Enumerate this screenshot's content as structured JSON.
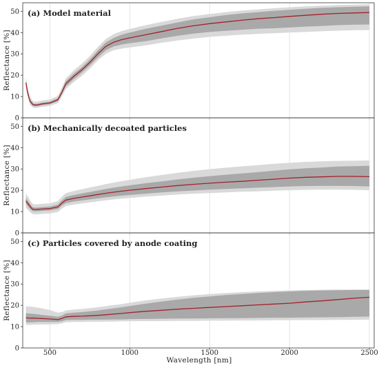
{
  "figure": {
    "xlabel": "Wavelength [nm]",
    "ylabel": "Reflectance [%]",
    "colors": {
      "mean_line": "#a3202a",
      "inner_band": "#a9a9a9",
      "outer_band": "#d9d9d9",
      "grid": "#dddddd",
      "axis": "#333333"
    }
  },
  "chart_data": [
    {
      "type": "area",
      "title": "(a) Model material",
      "xlabel": "",
      "ylabel": "Reflectance [%]",
      "xlim": [
        330,
        2530
      ],
      "ylim": [
        0,
        54
      ],
      "xticks": [
        500,
        1000,
        1500,
        2000,
        2500
      ],
      "yticks": [
        0,
        10,
        20,
        30,
        40,
        50
      ],
      "grid": "vertical",
      "x": [
        350,
        360,
        375,
        390,
        400,
        420,
        450,
        500,
        550,
        575,
        600,
        650,
        700,
        750,
        800,
        850,
        900,
        950,
        1000,
        1100,
        1200,
        1300,
        1400,
        1500,
        1600,
        1700,
        1800,
        1900,
        2000,
        2100,
        2200,
        2300,
        2400,
        2500
      ],
      "series": [
        {
          "role": "mean",
          "values": [
            16.5,
            12,
            8,
            6.5,
            6,
            6,
            6.5,
            7,
            8.5,
            12,
            16,
            19.5,
            22.5,
            26,
            30,
            33.5,
            35.5,
            36.7,
            37.5,
            39,
            40.5,
            42,
            43.2,
            44.2,
            45,
            45.8,
            46.5,
            47,
            47.6,
            48.1,
            48.6,
            49,
            49.2,
            49.4
          ]
        },
        {
          "role": "inner-lower",
          "values": [
            15.5,
            11,
            7.3,
            5.8,
            5.4,
            5.4,
            5.9,
            6.4,
            7.8,
            11,
            14.8,
            18.2,
            21.2,
            24.6,
            28.4,
            31.7,
            33.5,
            34.4,
            35,
            36,
            37.3,
            38.5,
            39.5,
            40.3,
            40.8,
            41.3,
            41.8,
            42,
            42.4,
            42.8,
            43.1,
            43.5,
            43.7,
            43.8
          ]
        },
        {
          "role": "inner-upper",
          "values": [
            17.5,
            13,
            8.7,
            7.2,
            6.6,
            6.6,
            7.1,
            7.6,
            9.2,
            13,
            17.2,
            20.8,
            23.8,
            27.4,
            31.6,
            35.3,
            37.5,
            39,
            40,
            41.8,
            43.3,
            44.8,
            46.2,
            47.2,
            48.2,
            49,
            49.6,
            50.2,
            50.7,
            51.2,
            51.6,
            51.9,
            52.1,
            52.3
          ]
        },
        {
          "role": "outer-lower",
          "values": [
            14,
            10,
            6.2,
            5,
            4.6,
            4.7,
            5.1,
            5.6,
            6.9,
            10,
            13.5,
            16.8,
            19.7,
            23.1,
            27,
            30,
            31.8,
            32.5,
            33,
            34,
            35.2,
            36.3,
            37.2,
            38,
            38.5,
            39,
            39.4,
            39.7,
            40,
            40.3,
            40.6,
            40.9,
            41.1,
            41.2
          ]
        },
        {
          "role": "outer-upper",
          "values": [
            19,
            14.5,
            10,
            8.3,
            7.6,
            7.6,
            8.1,
            8.6,
            10.3,
            14.2,
            18.5,
            22.3,
            25.4,
            29,
            33.2,
            37,
            39.3,
            40.7,
            41.7,
            43.5,
            45,
            46.5,
            47.8,
            48.7,
            49.6,
            50.3,
            50.9,
            51.4,
            51.9,
            52.3,
            52.6,
            52.9,
            53.1,
            53.3
          ]
        }
      ]
    },
    {
      "type": "area",
      "title": "(b) Mechanically decoated particles",
      "xlabel": "",
      "ylabel": "Reflectance [%]",
      "xlim": [
        330,
        2530
      ],
      "ylim": [
        0,
        54
      ],
      "xticks": [
        500,
        1000,
        1500,
        2000,
        2500
      ],
      "yticks": [
        0,
        10,
        20,
        30,
        40,
        50
      ],
      "grid": "vertical",
      "x": [
        350,
        360,
        375,
        390,
        400,
        420,
        450,
        500,
        550,
        575,
        600,
        650,
        700,
        750,
        800,
        850,
        900,
        950,
        1000,
        1100,
        1200,
        1300,
        1400,
        1500,
        1600,
        1700,
        1800,
        1900,
        2000,
        2100,
        2200,
        2300,
        2400,
        2500
      ],
      "series": [
        {
          "role": "mean",
          "values": [
            15,
            14,
            12.5,
            11.2,
            11,
            11,
            11.2,
            11.4,
            12.2,
            14,
            15.4,
            16.2,
            16.8,
            17.4,
            18,
            18.6,
            19.1,
            19.6,
            20,
            20.8,
            21.5,
            22.2,
            22.8,
            23.3,
            23.8,
            24.2,
            24.7,
            25.2,
            25.7,
            26.1,
            26.3,
            26.5,
            26.5,
            26.4
          ]
        },
        {
          "role": "inner-lower",
          "values": [
            13.5,
            12.7,
            11.3,
            10.3,
            10.1,
            10.1,
            10.3,
            10.5,
            11.2,
            12.8,
            14,
            14.7,
            15.2,
            15.7,
            16.2,
            16.7,
            17.1,
            17.5,
            17.8,
            18.4,
            19,
            19.5,
            19.9,
            20.3,
            20.6,
            20.9,
            21.2,
            21.5,
            21.8,
            22,
            22.1,
            22.1,
            22,
            21.8
          ]
        },
        {
          "role": "inner-upper",
          "values": [
            16.5,
            15.3,
            13.7,
            12.2,
            11.9,
            11.9,
            12.1,
            12.4,
            13.3,
            15.3,
            16.9,
            17.8,
            18.5,
            19.2,
            19.9,
            20.6,
            21.2,
            21.8,
            22.3,
            23.3,
            24.2,
            25.1,
            25.9,
            26.6,
            27.3,
            27.9,
            28.5,
            29.2,
            29.8,
            30.3,
            30.7,
            31.1,
            31.3,
            31.5
          ]
        },
        {
          "role": "outer-lower",
          "values": [
            11.8,
            11,
            9.8,
            8.9,
            8.7,
            8.7,
            8.9,
            9.1,
            9.8,
            11.4,
            12.6,
            13.3,
            13.8,
            14.3,
            14.8,
            15.3,
            15.7,
            16.1,
            16.4,
            17,
            17.5,
            18,
            18.4,
            18.7,
            19,
            19.3,
            19.5,
            19.8,
            20,
            20.2,
            20.3,
            20.3,
            20.2,
            20
          ]
        },
        {
          "role": "outer-upper",
          "values": [
            18.5,
            17.3,
            15.4,
            13.8,
            13.4,
            13.4,
            13.6,
            13.9,
            14.9,
            17,
            18.7,
            19.7,
            20.5,
            21.3,
            22.1,
            22.9,
            23.6,
            24.3,
            24.9,
            26.1,
            27.2,
            28.2,
            29.1,
            29.9,
            30.6,
            31.2,
            31.8,
            32.4,
            32.9,
            33.3,
            33.6,
            33.8,
            33.9,
            34
          ]
        }
      ]
    },
    {
      "type": "area",
      "title": "(c) Particles covered by anode coating",
      "xlabel": "Wavelength [nm]",
      "ylabel": "Reflectance [%]",
      "xlim": [
        330,
        2530
      ],
      "ylim": [
        0,
        54
      ],
      "xticks": [
        500,
        1000,
        1500,
        2000,
        2500
      ],
      "yticks": [
        0,
        10,
        20,
        30,
        40,
        50
      ],
      "grid": "vertical",
      "x": [
        350,
        360,
        375,
        390,
        400,
        420,
        450,
        500,
        550,
        575,
        600,
        650,
        700,
        750,
        800,
        850,
        900,
        950,
        1000,
        1100,
        1200,
        1300,
        1400,
        1500,
        1600,
        1700,
        1800,
        1900,
        2000,
        2100,
        2200,
        2300,
        2400,
        2500
      ],
      "series": [
        {
          "role": "mean",
          "values": [
            14.2,
            14.1,
            14,
            14,
            14,
            13.9,
            13.8,
            13.6,
            13.3,
            13.8,
            14.6,
            14.8,
            14.9,
            15.1,
            15.3,
            15.6,
            15.9,
            16.2,
            16.6,
            17.2,
            17.7,
            18.2,
            18.6,
            19,
            19.4,
            19.8,
            20.2,
            20.6,
            21,
            21.6,
            22.1,
            22.7,
            23.3,
            23.8
          ]
        },
        {
          "role": "inner-lower",
          "values": [
            12,
            12,
            12,
            12.1,
            12.1,
            12.2,
            12.2,
            12.2,
            12.2,
            12.5,
            13.1,
            13.2,
            13.2,
            13.3,
            13.3,
            13.3,
            13.4,
            13.4,
            13.5,
            13.6,
            13.7,
            13.8,
            13.8,
            13.9,
            14,
            14,
            14.1,
            14.2,
            14.2,
            14.3,
            14.4,
            14.5,
            14.6,
            14.7
          ]
        },
        {
          "role": "inner-upper",
          "values": [
            16.3,
            16.2,
            16.1,
            16,
            16,
            15.8,
            15.5,
            15.1,
            14.6,
            15.2,
            16.2,
            16.6,
            16.8,
            17.2,
            17.6,
            18.1,
            18.6,
            19.1,
            19.7,
            20.8,
            21.8,
            22.7,
            23.5,
            24.2,
            24.8,
            25.3,
            25.8,
            26.2,
            26.5,
            26.8,
            27,
            27.1,
            27.2,
            27.2
          ]
        },
        {
          "role": "outer-lower",
          "values": [
            10.8,
            10.8,
            10.8,
            10.9,
            10.9,
            11,
            11,
            11.1,
            11.2,
            11.5,
            12.1,
            12.2,
            12.2,
            12.3,
            12.3,
            12.4,
            12.4,
            12.5,
            12.5,
            12.6,
            12.6,
            12.7,
            12.7,
            12.8,
            12.8,
            12.9,
            12.9,
            13,
            13,
            13.1,
            13.1,
            13.2,
            13.2,
            13.3
          ]
        },
        {
          "role": "outer-upper",
          "values": [
            19.5,
            19.5,
            19.4,
            19.3,
            19.2,
            19,
            18.6,
            17.8,
            16.6,
            16.8,
            17.6,
            18,
            18.3,
            18.7,
            19.1,
            19.6,
            20.1,
            20.6,
            21.2,
            22.3,
            23.2,
            24,
            24.7,
            25.3,
            25.8,
            26.2,
            26.5,
            26.8,
            27,
            27.2,
            27.3,
            27.4,
            27.4,
            27.4
          ]
        }
      ]
    }
  ]
}
